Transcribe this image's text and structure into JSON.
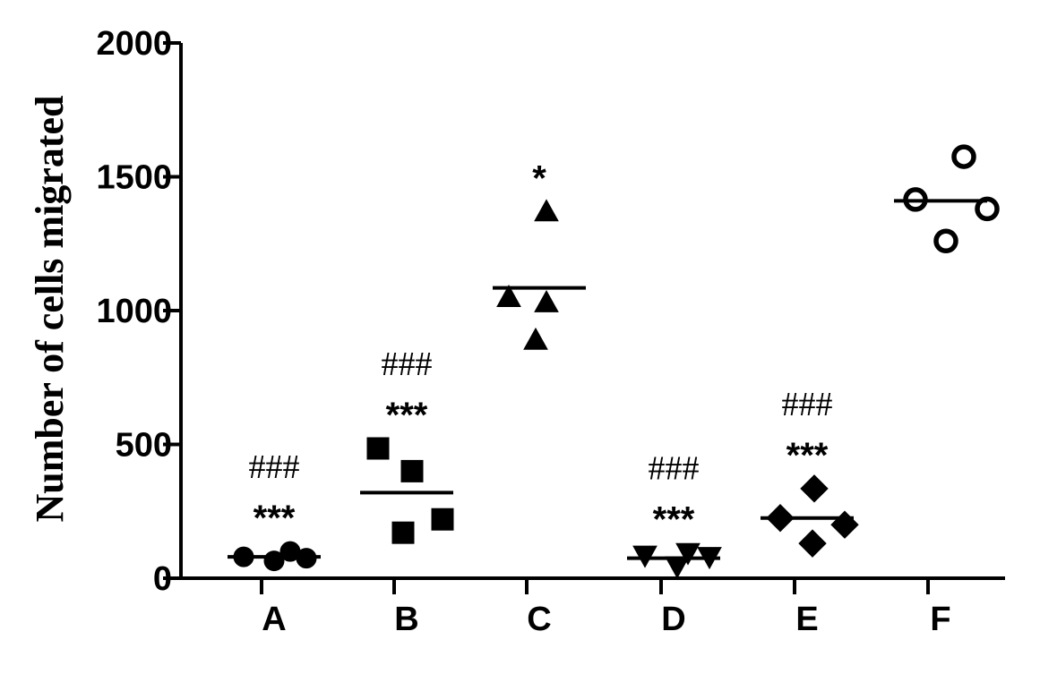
{
  "chart_data": {
    "type": "scatter",
    "title": "",
    "xlabel": "",
    "ylabel": "Number of cells migrated",
    "ylim": [
      0,
      2000
    ],
    "yticks": [
      0,
      500,
      1000,
      1500,
      2000
    ],
    "grid": false,
    "categories": [
      "A",
      "B",
      "C",
      "D",
      "E",
      "F"
    ],
    "groups": [
      {
        "label": "A",
        "marker": "circle-filled",
        "values": [
          80,
          65,
          100,
          75
        ],
        "mean": 80,
        "sig_star": "***",
        "sig_hash": "###"
      },
      {
        "label": "B",
        "marker": "square-filled",
        "values": [
          485,
          170,
          400,
          220
        ],
        "mean": 320,
        "sig_star": "***",
        "sig_hash": "###"
      },
      {
        "label": "C",
        "marker": "triangle-up",
        "values": [
          1050,
          890,
          1030,
          1370
        ],
        "mean": 1085,
        "sig_star": "*",
        "sig_hash": ""
      },
      {
        "label": "D",
        "marker": "triangle-down",
        "values": [
          85,
          45,
          95,
          80
        ],
        "mean": 75,
        "sig_star": "***",
        "sig_hash": "###"
      },
      {
        "label": "E",
        "marker": "diamond-filled",
        "values": [
          225,
          130,
          335,
          200
        ],
        "mean": 225,
        "sig_star": "***",
        "sig_hash": "###"
      },
      {
        "label": "F",
        "marker": "circle-open",
        "values": [
          1415,
          1260,
          1575,
          1380
        ],
        "mean": 1410,
        "sig_star": "",
        "sig_hash": ""
      }
    ]
  }
}
